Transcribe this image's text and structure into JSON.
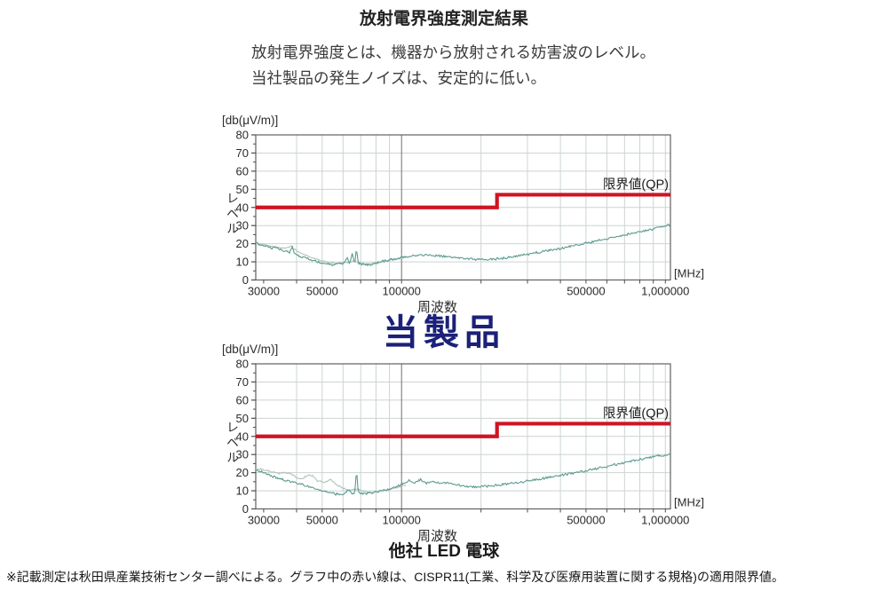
{
  "page": {
    "title": "放射電界強度測定結果",
    "description_lines": [
      "放射電界強度とは、機器から放射される妨害波のレベル。",
      "当社製品の発生ノイズは、安定的に低い。"
    ],
    "footnote": "※記載測定は秋田県産業技術センター調べによる。グラフ中の赤い線は、CISPR11(工業、科学及び医療用装置に関する規格)の適用限界値。"
  },
  "colors": {
    "limit_red": "#cf1423",
    "trace_teal": "#5b9b90",
    "trace_light": "#b4c2bc",
    "grid": "#ccd4d0",
    "grid_dark": "#6e6e6e",
    "axis": "#4d4d4d",
    "box": "#606060",
    "caption_navy": "#1b2178",
    "tick_text": "#2b2b2b"
  },
  "chart_data": [
    {
      "type": "line",
      "caption": "当製品",
      "caption_color": "#1b2178",
      "unit_label": "[db(μV/m)]",
      "ylabel": "レベル",
      "xlabel": "周波数",
      "x_unit": "[MHz]",
      "x_scale": "log",
      "xlim": [
        28000,
        1045000
      ],
      "ylim": [
        0,
        80
      ],
      "y_ticks": [
        0,
        10,
        20,
        30,
        40,
        50,
        60,
        70,
        80
      ],
      "y_minor_step": 5,
      "x_ticks": [
        {
          "f": 30000,
          "label": "30000"
        },
        {
          "f": 50000,
          "label": "50000"
        },
        {
          "f": 100000,
          "label": "100000"
        },
        {
          "f": 500000,
          "label": "500000"
        },
        {
          "f": 1000000,
          "label": "1,000000"
        }
      ],
      "x_grid_minor": [
        40000,
        50000,
        60000,
        70000,
        80000,
        90000,
        200000,
        300000,
        400000,
        500000,
        600000,
        700000,
        800000,
        900000,
        1000000
      ],
      "x_grid_major": [
        100000
      ],
      "x_axis_ticks": [
        30000,
        40000,
        50000,
        60000,
        70000,
        80000,
        90000,
        100000,
        200000,
        300000,
        400000,
        500000,
        600000,
        700000,
        800000,
        900000,
        1000000
      ],
      "limit": {
        "label": "限界値(QP)",
        "low": 40,
        "high": 47,
        "step_f": 230000,
        "color": "#cf1423"
      },
      "series": [
        {
          "id": "trace-secondary",
          "color": "#b4c2bc",
          "jitter": 0.35,
          "anchors": [
            [
              28000,
              20.4
            ],
            [
              31000,
              18.9
            ],
            [
              33000,
              18.3
            ],
            [
              35000,
              17.6
            ],
            [
              37000,
              17.8
            ],
            [
              38200,
              18.6
            ],
            [
              39500,
              16.6
            ],
            [
              41000,
              15.1
            ],
            [
              44000,
              13.2
            ],
            [
              47000,
              11.7
            ],
            [
              50000,
              10.5
            ],
            [
              54000,
              9.5
            ],
            [
              58000,
              9.1
            ],
            [
              62000,
              9.7
            ],
            [
              66000,
              10.3
            ],
            [
              70000,
              9.2
            ],
            [
              75000,
              8.7
            ],
            [
              80000,
              9.4
            ],
            [
              88000,
              10.6
            ],
            [
              96000,
              11.6
            ],
            [
              105000,
              12.8
            ]
          ]
        },
        {
          "id": "trace-main",
          "color": "#5b9b90",
          "jitter": 0.55,
          "anchors": [
            [
              28000,
              20.6
            ],
            [
              30000,
              19.0
            ],
            [
              32000,
              17.8
            ],
            [
              34000,
              17.2
            ],
            [
              36000,
              16.1
            ],
            [
              37500,
              15.1
            ],
            [
              38500,
              18.2
            ],
            [
              39500,
              14.2
            ],
            [
              42000,
              12.7
            ],
            [
              45000,
              11.2
            ],
            [
              48000,
              10.1
            ],
            [
              52000,
              9.0
            ],
            [
              56000,
              8.4
            ],
            [
              58000,
              9.6
            ],
            [
              60000,
              8.7
            ],
            [
              62000,
              12.6
            ],
            [
              63500,
              9.2
            ],
            [
              65000,
              14.6
            ],
            [
              66500,
              9.5
            ],
            [
              67500,
              17.8
            ],
            [
              68500,
              9.3
            ],
            [
              72000,
              8.6
            ],
            [
              76000,
              8.3
            ],
            [
              80000,
              9.2
            ],
            [
              86000,
              10.4
            ],
            [
              93000,
              11.4
            ],
            [
              100000,
              12.4
            ],
            [
              110000,
              13.4
            ],
            [
              120000,
              13.8
            ],
            [
              130000,
              13.6
            ],
            [
              145000,
              13.0
            ],
            [
              160000,
              12.4
            ],
            [
              175000,
              11.9
            ],
            [
              190000,
              11.4
            ],
            [
              210000,
              11.2
            ],
            [
              230000,
              11.7
            ],
            [
              250000,
              12.3
            ],
            [
              270000,
              13.1
            ],
            [
              300000,
              14.2
            ],
            [
              330000,
              15.2
            ],
            [
              360000,
              16.2
            ],
            [
              400000,
              17.4
            ],
            [
              450000,
              18.9
            ],
            [
              500000,
              20.3
            ],
            [
              560000,
              21.8
            ],
            [
              630000,
              23.4
            ],
            [
              700000,
              24.8
            ],
            [
              780000,
              26.2
            ],
            [
              860000,
              27.5
            ],
            [
              940000,
              28.7
            ],
            [
              1000000,
              29.7
            ],
            [
              1045000,
              30.6
            ]
          ]
        }
      ]
    },
    {
      "type": "line",
      "caption": "他社 LED 電球",
      "caption_color": "#1a1a1a",
      "unit_label": "[db(μV/m)]",
      "ylabel": "レベル",
      "xlabel": "周波数",
      "x_unit": "[MHz]",
      "x_scale": "log",
      "xlim": [
        28000,
        1045000
      ],
      "ylim": [
        0,
        80
      ],
      "y_ticks": [
        0,
        10,
        20,
        30,
        40,
        50,
        60,
        70,
        80
      ],
      "y_minor_step": 5,
      "x_ticks": [
        {
          "f": 30000,
          "label": "30000"
        },
        {
          "f": 50000,
          "label": "50000"
        },
        {
          "f": 100000,
          "label": "100000"
        },
        {
          "f": 500000,
          "label": "500000"
        },
        {
          "f": 1000000,
          "label": "1,000000"
        }
      ],
      "x_grid_minor": [
        40000,
        50000,
        60000,
        70000,
        80000,
        90000,
        200000,
        300000,
        400000,
        500000,
        600000,
        700000,
        800000,
        900000,
        1000000
      ],
      "x_grid_major": [
        100000
      ],
      "x_axis_ticks": [
        30000,
        40000,
        50000,
        60000,
        70000,
        80000,
        90000,
        100000,
        200000,
        300000,
        400000,
        500000,
        600000,
        700000,
        800000,
        900000,
        1000000
      ],
      "limit": {
        "label": "限界値(QP)",
        "low": 40,
        "high": 47,
        "step_f": 230000,
        "color": "#cf1423"
      },
      "series": [
        {
          "id": "trace-secondary",
          "color": "#b4c2bc",
          "jitter": 0.4,
          "anchors": [
            [
              28000,
              22.3
            ],
            [
              30000,
              21.6
            ],
            [
              32000,
              20.6
            ],
            [
              34000,
              19.4
            ],
            [
              36000,
              20.1
            ],
            [
              38000,
              19.5
            ],
            [
              40000,
              17.2
            ],
            [
              42000,
              16.4
            ],
            [
              44000,
              18.8
            ],
            [
              46000,
              18.2
            ],
            [
              48000,
              15.5
            ],
            [
              51000,
              14.7
            ],
            [
              54000,
              16.1
            ],
            [
              57000,
              13.1
            ],
            [
              60000,
              11.3
            ],
            [
              64000,
              10.3
            ],
            [
              68000,
              10.8
            ],
            [
              72000,
              9.7
            ],
            [
              76000,
              9.0
            ],
            [
              80000,
              9.5
            ],
            [
              88000,
              10.7
            ],
            [
              96000,
              11.9
            ],
            [
              104000,
              13.3
            ]
          ]
        },
        {
          "id": "trace-main",
          "color": "#5b9b90",
          "jitter": 0.55,
          "anchors": [
            [
              28000,
              21.6
            ],
            [
              30000,
              20.1
            ],
            [
              32000,
              18.3
            ],
            [
              34000,
              16.9
            ],
            [
              36000,
              15.9
            ],
            [
              38000,
              15.0
            ],
            [
              40000,
              14.2
            ],
            [
              43000,
              13.0
            ],
            [
              46000,
              11.6
            ],
            [
              50000,
              10.2
            ],
            [
              54000,
              8.8
            ],
            [
              58000,
              7.9
            ],
            [
              61000,
              8.4
            ],
            [
              63000,
              10.7
            ],
            [
              64500,
              8.6
            ],
            [
              66500,
              9.2
            ],
            [
              67500,
              21.4
            ],
            [
              68500,
              9.4
            ],
            [
              70000,
              8.8
            ],
            [
              73000,
              8.4
            ],
            [
              77000,
              8.9
            ],
            [
              82000,
              9.7
            ],
            [
              88000,
              10.7
            ],
            [
              95000,
              11.9
            ],
            [
              100000,
              13.5
            ],
            [
              107000,
              15.7
            ],
            [
              112000,
              14.5
            ],
            [
              118000,
              16.3
            ],
            [
              124000,
              14.2
            ],
            [
              132000,
              15.3
            ],
            [
              140000,
              13.9
            ],
            [
              150000,
              14.5
            ],
            [
              160000,
              13.2
            ],
            [
              175000,
              12.5
            ],
            [
              190000,
              12.1
            ],
            [
              210000,
              12.5
            ],
            [
              230000,
              13.1
            ],
            [
              250000,
              13.7
            ],
            [
              280000,
              14.7
            ],
            [
              310000,
              15.7
            ],
            [
              350000,
              17.0
            ],
            [
              400000,
              18.5
            ],
            [
              450000,
              19.9
            ],
            [
              500000,
              21.1
            ],
            [
              560000,
              22.5
            ],
            [
              630000,
              24.1
            ],
            [
              700000,
              25.5
            ],
            [
              780000,
              26.9
            ],
            [
              860000,
              28.1
            ],
            [
              930000,
              29.4
            ],
            [
              980000,
              28.9
            ],
            [
              1045000,
              30.3
            ]
          ]
        }
      ]
    }
  ]
}
